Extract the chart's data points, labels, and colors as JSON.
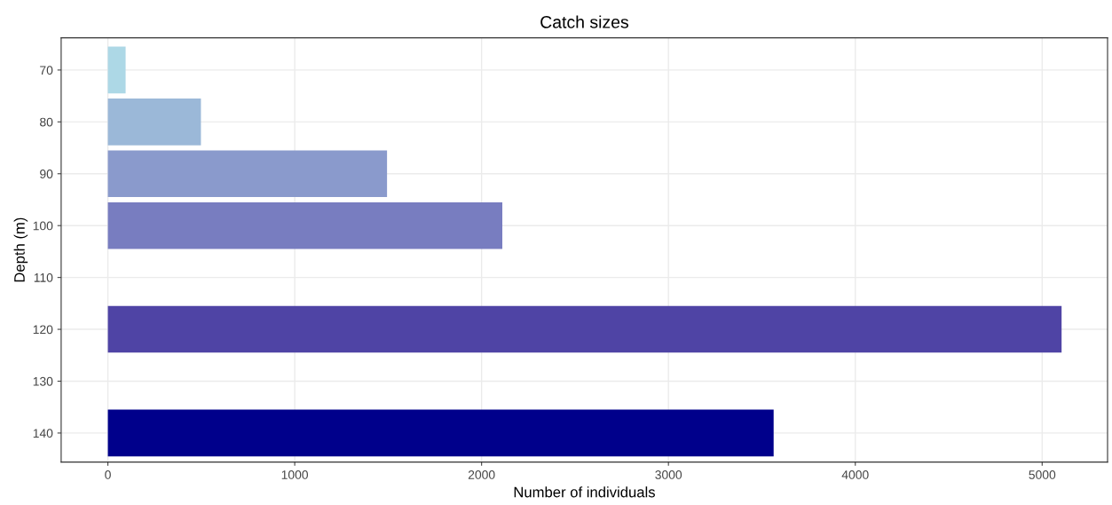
{
  "chart_data": {
    "type": "bar",
    "orientation": "horizontal",
    "title": "Catch sizes",
    "xlabel": "Number of individuals",
    "ylabel": "Depth (m)",
    "x": [
      70,
      80,
      90,
      100,
      120,
      140
    ],
    "values": [
      95,
      498,
      1494,
      2111,
      5104,
      3563
    ],
    "colors": [
      "#add8e6",
      "#9bb8d8",
      "#8a9acc",
      "#787dc0",
      "#4f44a5",
      "#00008b"
    ],
    "xlim": [
      -250,
      5350
    ],
    "xticks": [
      0,
      1000,
      2000,
      3000,
      4000,
      5000
    ],
    "ylim": [
      145.6,
      63.8
    ],
    "yticks": [
      70,
      80,
      90,
      100,
      110,
      120,
      130,
      140
    ],
    "grid": true
  }
}
